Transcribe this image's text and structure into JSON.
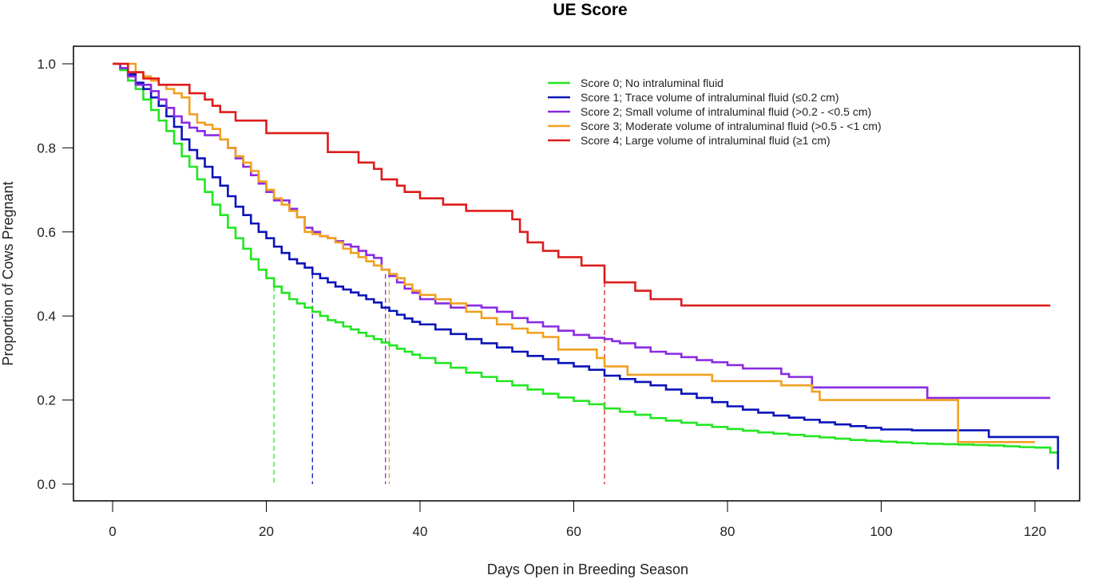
{
  "chart_data": {
    "type": "line",
    "subtype": "kaplan-meier-step",
    "title": "UE Score",
    "xlabel": "Days Open in Breeding Season",
    "ylabel": "Proportion of Cows Pregnant",
    "xlim": [
      -5,
      128
    ],
    "ylim": [
      -0.04,
      1.04
    ],
    "xticks": [
      0,
      20,
      40,
      60,
      80,
      100,
      120
    ],
    "xtick_labels": [
      "0",
      "20",
      "40",
      "60",
      "80",
      "100",
      "120"
    ],
    "yticks": [
      0.0,
      0.2,
      0.4,
      0.6,
      0.8,
      1.0
    ],
    "ytick_labels": [
      "0.0",
      "0.2",
      "0.4",
      "0.6",
      "0.8",
      "1.0"
    ],
    "grid": false,
    "legend_position": "top-right",
    "series": [
      {
        "name": "Score 0; No intraluminal fluid",
        "color": "#22e622",
        "median": 21,
        "x": [
          0,
          1,
          2,
          3,
          4,
          5,
          6,
          7,
          8,
          9,
          10,
          11,
          12,
          13,
          14,
          15,
          16,
          17,
          18,
          19,
          20,
          21,
          22,
          23,
          24,
          25,
          26,
          27,
          28,
          29,
          30,
          31,
          32,
          33,
          34,
          35,
          36,
          37,
          38,
          39,
          40,
          42,
          44,
          46,
          48,
          50,
          52,
          54,
          56,
          58,
          60,
          62,
          64,
          66,
          68,
          70,
          72,
          74,
          76,
          78,
          80,
          82,
          84,
          86,
          88,
          90,
          92,
          94,
          96,
          98,
          100,
          102,
          104,
          106,
          108,
          110,
          112,
          114,
          116,
          118,
          120,
          122,
          123
        ],
        "y": [
          1.0,
          0.985,
          0.96,
          0.94,
          0.915,
          0.89,
          0.865,
          0.84,
          0.81,
          0.78,
          0.755,
          0.725,
          0.695,
          0.665,
          0.64,
          0.61,
          0.585,
          0.56,
          0.535,
          0.51,
          0.49,
          0.47,
          0.455,
          0.44,
          0.43,
          0.42,
          0.41,
          0.4,
          0.39,
          0.385,
          0.375,
          0.368,
          0.36,
          0.352,
          0.345,
          0.337,
          0.33,
          0.322,
          0.315,
          0.308,
          0.3,
          0.288,
          0.277,
          0.265,
          0.255,
          0.245,
          0.235,
          0.225,
          0.215,
          0.206,
          0.198,
          0.19,
          0.18,
          0.172,
          0.165,
          0.157,
          0.151,
          0.146,
          0.141,
          0.136,
          0.131,
          0.127,
          0.123,
          0.12,
          0.117,
          0.114,
          0.111,
          0.108,
          0.105,
          0.103,
          0.101,
          0.099,
          0.097,
          0.096,
          0.095,
          0.094,
          0.093,
          0.092,
          0.09,
          0.088,
          0.087,
          0.075,
          0.07
        ]
      },
      {
        "name": "Score 1; Trace volume of intraluminal fluid (≤0.2 cm)",
        "color": "#0a13b8",
        "median": 26,
        "x": [
          0,
          1,
          2,
          3,
          4,
          5,
          6,
          7,
          8,
          9,
          10,
          11,
          12,
          13,
          14,
          15,
          16,
          17,
          18,
          19,
          20,
          21,
          22,
          23,
          24,
          25,
          26,
          27,
          28,
          29,
          30,
          31,
          32,
          33,
          34,
          35,
          36,
          37,
          38,
          39,
          40,
          42,
          44,
          46,
          48,
          50,
          52,
          54,
          56,
          58,
          60,
          62,
          64,
          66,
          68,
          70,
          72,
          74,
          76,
          78,
          80,
          82,
          84,
          86,
          88,
          90,
          92,
          94,
          96,
          98,
          100,
          104,
          108,
          110,
          114,
          123
        ],
        "y": [
          1.0,
          0.99,
          0.975,
          0.955,
          0.94,
          0.92,
          0.9,
          0.875,
          0.85,
          0.82,
          0.795,
          0.775,
          0.755,
          0.73,
          0.71,
          0.685,
          0.66,
          0.64,
          0.62,
          0.6,
          0.585,
          0.565,
          0.55,
          0.535,
          0.525,
          0.515,
          0.5,
          0.49,
          0.48,
          0.47,
          0.463,
          0.456,
          0.449,
          0.44,
          0.432,
          0.42,
          0.412,
          0.403,
          0.394,
          0.386,
          0.38,
          0.368,
          0.357,
          0.345,
          0.335,
          0.325,
          0.315,
          0.305,
          0.297,
          0.288,
          0.28,
          0.272,
          0.258,
          0.25,
          0.243,
          0.235,
          0.225,
          0.215,
          0.205,
          0.195,
          0.185,
          0.177,
          0.17,
          0.163,
          0.158,
          0.153,
          0.147,
          0.142,
          0.138,
          0.134,
          0.13,
          0.128,
          0.128,
          0.128,
          0.112,
          0.035
        ]
      },
      {
        "name": "Score 2; Small volume of intraluminal fluid (>0.2 - <0.5 cm)",
        "color": "#8a2be2",
        "median": 35.5,
        "x": [
          0,
          1,
          2,
          3,
          5,
          6,
          7,
          8,
          9,
          10,
          11,
          12,
          14,
          15,
          16,
          17,
          18,
          19,
          20,
          21,
          23,
          24,
          25,
          26,
          27,
          28,
          29,
          30,
          31,
          32,
          33,
          34,
          35,
          36,
          37,
          38,
          39,
          40,
          42,
          44,
          46,
          48,
          50,
          52,
          54,
          56,
          58,
          60,
          62,
          64,
          65,
          66,
          68,
          70,
          72,
          74,
          76,
          78,
          80,
          82,
          86,
          87,
          88,
          91,
          96,
          106,
          122
        ],
        "y": [
          1.0,
          0.99,
          0.97,
          0.95,
          0.935,
          0.915,
          0.895,
          0.875,
          0.86,
          0.848,
          0.84,
          0.83,
          0.82,
          0.8,
          0.775,
          0.755,
          0.735,
          0.715,
          0.695,
          0.675,
          0.655,
          0.635,
          0.61,
          0.6,
          0.59,
          0.585,
          0.578,
          0.57,
          0.565,
          0.555,
          0.545,
          0.538,
          0.51,
          0.495,
          0.48,
          0.465,
          0.455,
          0.44,
          0.43,
          0.42,
          0.425,
          0.42,
          0.41,
          0.395,
          0.385,
          0.375,
          0.365,
          0.355,
          0.348,
          0.345,
          0.34,
          0.335,
          0.325,
          0.315,
          0.31,
          0.302,
          0.295,
          0.29,
          0.283,
          0.275,
          0.275,
          0.262,
          0.255,
          0.23,
          0.23,
          0.205,
          0.205
        ]
      },
      {
        "name": "Score 3; Moderate volume of intraluminal fluid (>0.5 - <1 cm)",
        "color": "#f0a020",
        "median": 36,
        "x": [
          0,
          3,
          4,
          5,
          6,
          7,
          8,
          9,
          10,
          11,
          12,
          13,
          14,
          15,
          16,
          17,
          18,
          19,
          20,
          21,
          22,
          23,
          24,
          25,
          26,
          27,
          28,
          29,
          30,
          31,
          32,
          33,
          34,
          35,
          36,
          37,
          38,
          39,
          40,
          42,
          44,
          46,
          48,
          50,
          52,
          54,
          56,
          58,
          62,
          63,
          64,
          67,
          72,
          78,
          87,
          91,
          92,
          98,
          110,
          120
        ],
        "y": [
          1.0,
          0.98,
          0.97,
          0.96,
          0.95,
          0.94,
          0.93,
          0.92,
          0.88,
          0.86,
          0.855,
          0.845,
          0.82,
          0.8,
          0.78,
          0.765,
          0.745,
          0.72,
          0.7,
          0.68,
          0.665,
          0.65,
          0.635,
          0.6,
          0.595,
          0.59,
          0.585,
          0.575,
          0.56,
          0.55,
          0.54,
          0.53,
          0.52,
          0.51,
          0.5,
          0.49,
          0.475,
          0.46,
          0.45,
          0.44,
          0.43,
          0.41,
          0.395,
          0.38,
          0.37,
          0.36,
          0.35,
          0.32,
          0.32,
          0.3,
          0.28,
          0.26,
          0.26,
          0.245,
          0.235,
          0.22,
          0.2,
          0.2,
          0.1,
          0.1
        ]
      },
      {
        "name": "Score 4; Large volume of intraluminal fluid (≥1 cm)",
        "color": "#dd1c1c",
        "median": 64,
        "x": [
          0,
          2,
          4,
          6,
          10,
          12,
          13,
          14,
          16,
          20,
          28,
          32,
          34,
          35,
          37,
          38,
          40,
          43,
          46,
          52,
          53,
          54,
          56,
          58,
          61,
          64,
          68,
          70,
          74,
          122
        ],
        "y": [
          1.0,
          0.98,
          0.965,
          0.95,
          0.93,
          0.915,
          0.9,
          0.885,
          0.865,
          0.835,
          0.79,
          0.765,
          0.75,
          0.725,
          0.71,
          0.695,
          0.68,
          0.665,
          0.65,
          0.63,
          0.6,
          0.575,
          0.555,
          0.54,
          0.52,
          0.48,
          0.46,
          0.44,
          0.425,
          0.425
        ]
      }
    ]
  }
}
